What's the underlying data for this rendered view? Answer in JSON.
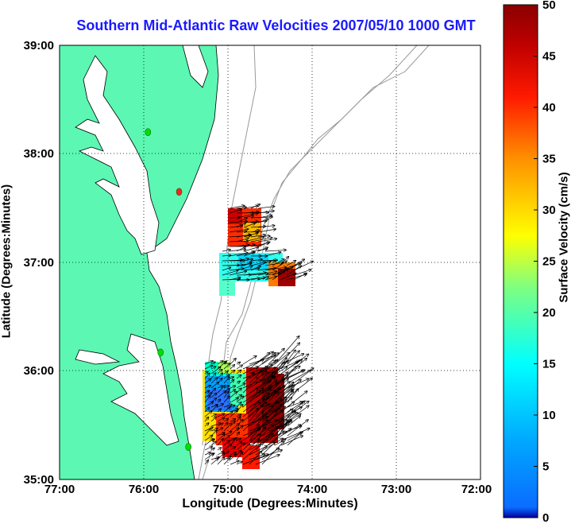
{
  "title": "Southern Mid-Atlantic Raw Velocities 2007/05/10 1000 GMT",
  "xlabel": "Longitude (Degrees:Minutes)",
  "ylabel": "Latitude (Degrees:Minutes)",
  "colorbar": {
    "label": "Surface Velocity (cm/s)",
    "ticks": [
      "0",
      "5",
      "10",
      "15",
      "20",
      "25",
      "30",
      "35",
      "40",
      "45",
      "50"
    ],
    "range": [
      0,
      50
    ],
    "colormap": "jet"
  },
  "axes": {
    "x_ticks": [
      "77:00",
      "76:00",
      "75:00",
      "74:00",
      "73:00",
      "72:00"
    ],
    "y_ticks": [
      "39:00",
      "38:00",
      "37:00",
      "36:00",
      "35:00"
    ],
    "lon_range": [
      -77,
      -72
    ],
    "lat_range": [
      35,
      39
    ],
    "grid": "dotted"
  },
  "colors": {
    "land": "#5cf7b3",
    "coast": "#000000",
    "bathymetry": "#999999",
    "title": "#1a1aff",
    "arrows": "#000000"
  },
  "stations": [
    {
      "lon": -75.95,
      "lat": 38.2,
      "color": "#00e000"
    },
    {
      "lon": -75.58,
      "lat": 37.65,
      "color": "#ff2020"
    },
    {
      "lon": -75.8,
      "lat": 36.17,
      "color": "#00e000"
    },
    {
      "lon": -75.47,
      "lat": 35.3,
      "color": "#00e000"
    }
  ],
  "velocity_regions": [
    {
      "name": "north-patch",
      "speed_range_cms": [
        5,
        50
      ]
    },
    {
      "name": "south-patch",
      "speed_range_cms": [
        0,
        50
      ]
    }
  ]
}
